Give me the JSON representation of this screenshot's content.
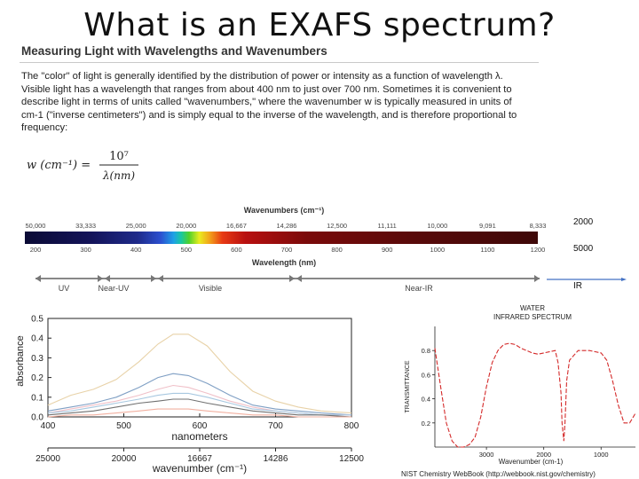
{
  "slide": {
    "title": "What is an EXAFS spectrum?"
  },
  "article": {
    "heading": "Measuring Light with Wavelengths and Wavenumbers",
    "lines": [
      "The \"color\" of light is generally identified by the distribution of power or intensity as a function of wavelength λ.",
      "Visible light has a wavelength that ranges from about 400 nm to just over 700 nm.  Sometimes it is convenient to",
      "describe light in terms of units called \"wavenumbers,\" where the wavenumber w is typically measured in units of",
      "cm-1 (\"inverse centimeters\") and is simply equal to the inverse of the wavelength, and is therefore proportional to",
      "frequency:"
    ],
    "formula": {
      "lhs": "w (cm⁻¹) =",
      "numerator": "10⁷",
      "denominator": "λ(nm)"
    }
  },
  "spectrum_bar": {
    "top_axis_label": "Wavenumbers (cm⁻¹)",
    "wavenumbers": [
      "50,000",
      "33,333",
      "25,000",
      "20,000",
      "16,667",
      "14,286",
      "12,500",
      "11,111",
      "10,000",
      "9,091",
      "8,333"
    ],
    "wavelengths": [
      "200",
      "300",
      "400",
      "500",
      "600",
      "700",
      "800",
      "900",
      "1000",
      "1100",
      "1200"
    ],
    "bottom_axis_label": "Wavelength (nm)",
    "regions": [
      "UV",
      "Near-UV",
      "Visible",
      "Near-IR"
    ]
  },
  "side_labels": {
    "a": "2000",
    "b": "5000",
    "c": "IR",
    "arrow_color": "#4472c4"
  },
  "absorbance_plot": {
    "ylabel": "absorbance",
    "yticks": [
      "0.0",
      "0.1",
      "0.2",
      "0.3",
      "0.4",
      "0.5"
    ],
    "xticks": [
      "400",
      "500",
      "600",
      "700",
      "800"
    ],
    "xlabel": "nanometers",
    "x2ticks": [
      "25000",
      "20000",
      "16667",
      "14286",
      "12500"
    ],
    "x2label": "wavenumber (cm⁻¹)"
  },
  "water_ir": {
    "title_line1": "WATER",
    "title_line2": "INFRARED SPECTRUM",
    "ylabel": "TRANSMITTANCE",
    "yticks": [
      "0.8",
      "0.6",
      "0.4",
      "0.2"
    ],
    "xticks": [
      "3000",
      "2000",
      "1000"
    ],
    "xlabel": "Wavenumber (cm-1)",
    "source": "NIST Chemistry WebBook (http://webbook.nist.gov/chemistry)",
    "line_color": "#d42a2a"
  },
  "chart_data": [
    {
      "type": "line",
      "title": "",
      "xlabel": "nanometers",
      "ylabel": "absorbance",
      "x2label": "wavenumber (cm⁻¹)",
      "xlim": [
        400,
        800
      ],
      "ylim": [
        0,
        0.5
      ],
      "grid": false,
      "x": [
        400,
        430,
        460,
        490,
        520,
        545,
        565,
        585,
        610,
        640,
        670,
        700,
        730,
        760,
        800
      ],
      "series": [
        {
          "color": "#e8d2a8",
          "values": [
            0.06,
            0.11,
            0.14,
            0.19,
            0.28,
            0.37,
            0.42,
            0.42,
            0.36,
            0.23,
            0.13,
            0.08,
            0.05,
            0.03,
            0.02
          ]
        },
        {
          "color": "#7f9fc4",
          "values": [
            0.03,
            0.05,
            0.07,
            0.1,
            0.15,
            0.2,
            0.22,
            0.21,
            0.17,
            0.11,
            0.06,
            0.04,
            0.03,
            0.02,
            0.01
          ]
        },
        {
          "color": "#f0c0c8",
          "values": [
            0.02,
            0.04,
            0.06,
            0.08,
            0.11,
            0.14,
            0.16,
            0.15,
            0.12,
            0.08,
            0.05,
            0.03,
            0.02,
            0.01,
            0.01
          ]
        },
        {
          "color": "#a8c8e0",
          "values": [
            0.02,
            0.03,
            0.05,
            0.07,
            0.09,
            0.11,
            0.12,
            0.12,
            0.1,
            0.07,
            0.04,
            0.03,
            0.02,
            0.01,
            0.01
          ]
        },
        {
          "color": "#707070",
          "values": [
            0.01,
            0.02,
            0.03,
            0.05,
            0.07,
            0.08,
            0.09,
            0.09,
            0.07,
            0.05,
            0.03,
            0.02,
            0.01,
            0.01,
            0.0
          ]
        },
        {
          "color": "#f2b0a0",
          "values": [
            0.0,
            0.01,
            0.01,
            0.02,
            0.03,
            0.04,
            0.04,
            0.04,
            0.03,
            0.02,
            0.01,
            0.01,
            0.0,
            0.0,
            0.0
          ]
        }
      ]
    },
    {
      "type": "line",
      "title": "WATER INFRARED SPECTRUM",
      "xlabel": "Wavenumber (cm-1)",
      "ylabel": "TRANSMITTANCE",
      "xlim": [
        3900,
        400
      ],
      "ylim": [
        0.0,
        1.0
      ],
      "grid": false,
      "x": [
        3900,
        3800,
        3700,
        3600,
        3500,
        3400,
        3300,
        3200,
        3100,
        3000,
        2900,
        2800,
        2700,
        2600,
        2500,
        2400,
        2300,
        2200,
        2100,
        2000,
        1900,
        1800,
        1750,
        1700,
        1680,
        1650,
        1630,
        1600,
        1550,
        1400,
        1200,
        1000,
        900,
        800,
        700,
        600,
        500,
        400
      ],
      "series": [
        {
          "color": "#d42a2a",
          "values": [
            0.82,
            0.5,
            0.2,
            0.05,
            0.0,
            0.0,
            0.02,
            0.08,
            0.25,
            0.5,
            0.7,
            0.8,
            0.85,
            0.86,
            0.85,
            0.82,
            0.8,
            0.78,
            0.77,
            0.78,
            0.79,
            0.8,
            0.7,
            0.45,
            0.2,
            0.05,
            0.2,
            0.55,
            0.72,
            0.8,
            0.8,
            0.78,
            0.72,
            0.55,
            0.35,
            0.2,
            0.2,
            0.28
          ]
        }
      ]
    }
  ]
}
